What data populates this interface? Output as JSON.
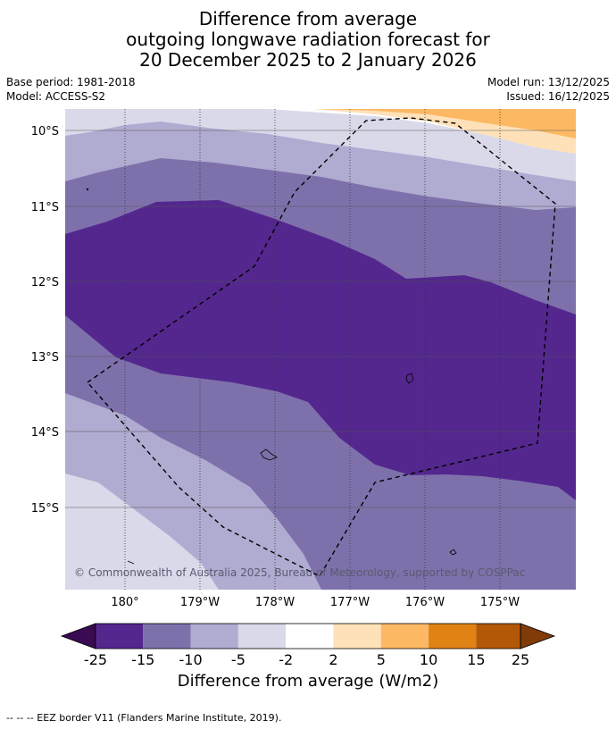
{
  "title": {
    "line1": "Difference from average",
    "line2": "outgoing longwave radiation forecast for",
    "line3": "20 December 2025 to 2 January 2026"
  },
  "meta": {
    "base_period": "Base period: 1981-2018",
    "model": "Model: ACCESS-S2",
    "model_run": "Model run: 13/12/2025",
    "issued": "Issued: 16/12/2025"
  },
  "map": {
    "lat_labels": [
      "10°S",
      "11°S",
      "12°S",
      "13°S",
      "14°S",
      "15°S"
    ],
    "lon_labels": [
      "180°",
      "179°W",
      "178°W",
      "177°W",
      "176°W",
      "175°W"
    ],
    "copyright": "© Commonwealth of Australia 2025, Bureau of Meteorology, supported by COSPPac"
  },
  "colorbar": {
    "ticks": [
      "-25",
      "-15",
      "-10",
      "-5",
      "-2",
      "2",
      "5",
      "10",
      "15",
      "25"
    ],
    "colors": {
      "lt_-25": "#3a0a52",
      "-25_-15": "#54278f",
      "-15_-10": "#7e71ab",
      "-10_-5": "#b0abd1",
      "-5_-2": "#d9d9ea",
      "-2_2": "#ffffff",
      "2_5": "#fee1b8",
      "5_10": "#fdb863",
      "10_15": "#e08214",
      "15_25": "#b35806",
      "gt_25": "#7f3b08"
    },
    "label": "Difference from average (W/m2)"
  },
  "footnote": "--  --  -- EEZ border V11 (Flanders Marine Institute, 2019)."
}
